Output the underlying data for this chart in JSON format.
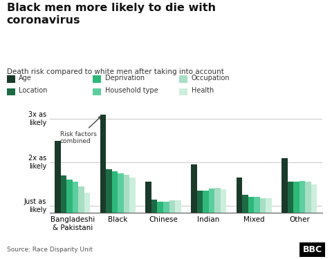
{
  "title": "Black men more likely to die with\ncoronavirus",
  "subtitle": "Death risk compared to white men after taking into account",
  "source": "Source: Race Disparity Unit",
  "categories": [
    "Bangladeshi\n& Pakistani",
    "Black",
    "Chinese",
    "Indian",
    "Mixed",
    "Other"
  ],
  "series_labels": [
    "Age",
    "Location",
    "Deprivation",
    "Household type",
    "Occupation",
    "Health"
  ],
  "colors": [
    "#1a3a2a",
    "#1d6b45",
    "#2db87a",
    "#5dcea0",
    "#a8dfc4",
    "#cceedd"
  ],
  "values": [
    [
      2.5,
      1.7,
      1.6,
      1.55,
      1.45,
      1.3
    ],
    [
      3.1,
      1.85,
      1.8,
      1.75,
      1.72,
      1.65
    ],
    [
      1.55,
      1.15,
      1.1,
      1.1,
      1.12,
      1.12
    ],
    [
      1.95,
      1.35,
      1.35,
      1.4,
      1.42,
      1.38
    ],
    [
      1.65,
      1.25,
      1.2,
      1.2,
      1.18,
      1.18
    ],
    [
      2.1,
      1.55,
      1.55,
      1.57,
      1.55,
      1.5
    ]
  ],
  "yticks": [
    1.0,
    2.0,
    3.0
  ],
  "ytick_labels": [
    "Just as\nlikely",
    "2x as\nlikely",
    "3x as\nlikely"
  ],
  "ymin": 0.85,
  "ymax": 3.35,
  "background_color": "#ffffff",
  "annotation_text": "Risk factors\ncombined",
  "grid_color": "#cccccc"
}
